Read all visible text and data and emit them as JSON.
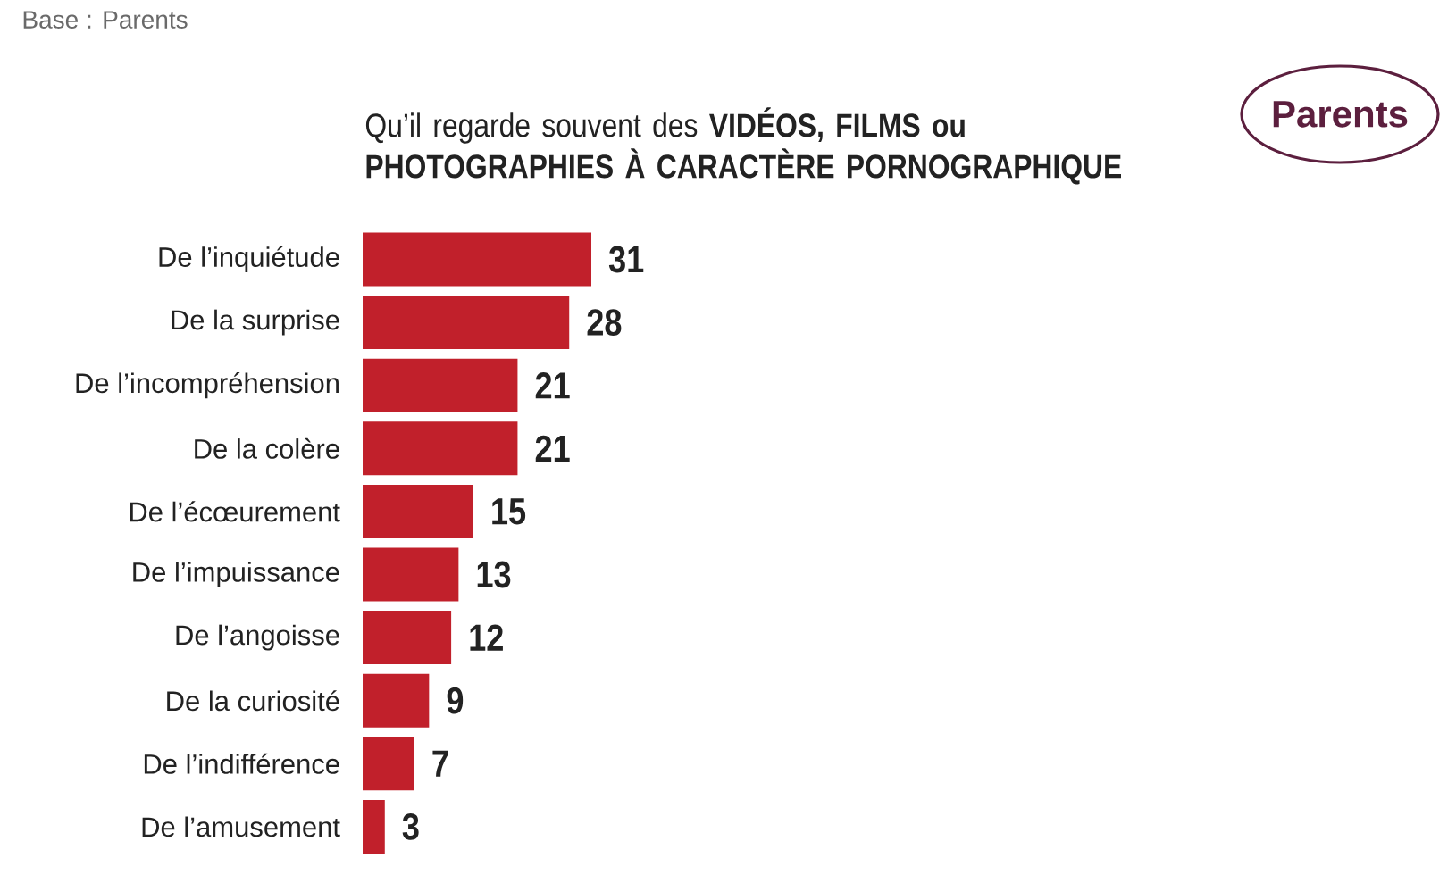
{
  "chart_data": {
    "type": "bar",
    "orientation": "horizontal",
    "title": "Qu’il regarde souvent des **VIDÉOS, FILMS ou PHOTOGRAPHIES À CARACTÈRE PORNOGRAPHIQUE**",
    "categories": [
      "De l’inquiétude",
      "De la surprise",
      "De l’incompréhension",
      "De la colère",
      "De l’écœurement",
      "De l’impuissance",
      "De l’angoisse",
      "De la curiosité",
      "De l’indifférence",
      "De l’amusement"
    ],
    "values": [
      31,
      28,
      21,
      21,
      15,
      13,
      12,
      9,
      7,
      3
    ],
    "color": "#c1202b",
    "data_labels": true,
    "annotations": [
      "Base : Parents",
      "Parents"
    ]
  }
}
